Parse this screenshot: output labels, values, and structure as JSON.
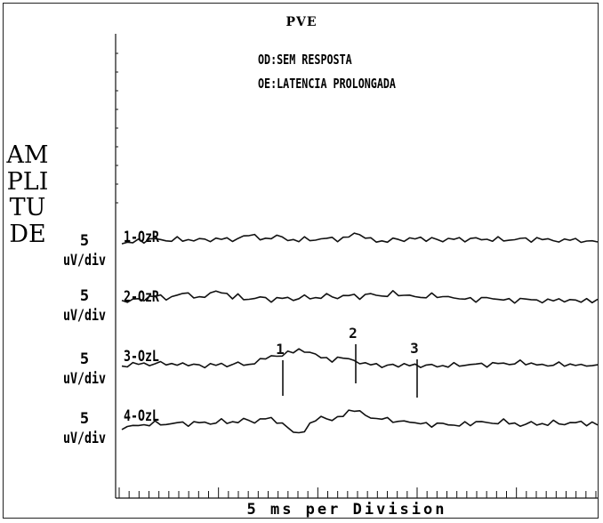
{
  "chart_data": {
    "type": "line",
    "title": "PVE",
    "annotations": [
      "OD:SEM RESPOSTA",
      "OE:LATENCIA PROLONGADA"
    ],
    "ylabel": "AMPLITUDE",
    "xlabel": "5 ms per Division",
    "grid": false,
    "series": [
      {
        "name": "1-OzR",
        "scale": "5",
        "scale_unit": "uV/div",
        "trace": [
          2.1,
          2.3,
          2.6,
          2.8,
          2.6,
          2.9,
          3.4,
          3.0,
          2.6,
          2.9,
          3.3,
          3.0,
          2.7,
          2.9,
          3.2,
          3.0,
          2.8,
          3.0,
          3.4,
          3.1,
          2.8,
          3.2,
          3.7,
          4.1,
          3.8,
          3.3,
          3.0,
          3.4,
          3.9,
          3.5,
          3.0,
          2.7,
          2.9,
          3.3,
          3.0,
          2.8,
          3.1,
          3.5,
          3.2,
          2.9,
          3.2,
          3.8,
          4.3,
          4.0,
          3.5,
          3.1,
          2.8,
          2.4,
          2.7,
          3.2,
          3.0,
          2.8,
          3.1,
          3.5,
          3.2,
          2.9,
          3.3,
          3.0,
          2.7,
          3.0,
          3.4,
          3.1,
          2.8,
          3.1,
          3.4,
          3.1,
          2.8,
          3.0,
          3.3,
          3.0,
          2.7,
          3.0,
          3.4,
          3.1,
          2.8,
          3.1,
          3.3,
          3.0,
          2.8,
          2.6,
          2.9,
          3.2,
          2.9,
          2.7,
          2.5,
          2.8,
          2.6
        ]
      },
      {
        "name": "2-OzR",
        "scale": "5",
        "scale_unit": "uV/div",
        "trace": [
          2.4,
          2.6,
          2.9,
          3.1,
          2.8,
          3.4,
          3.9,
          3.6,
          3.1,
          3.4,
          3.9,
          4.4,
          4.1,
          3.6,
          3.2,
          3.7,
          4.2,
          4.8,
          4.5,
          4.0,
          3.4,
          3.8,
          3.2,
          2.8,
          3.2,
          3.6,
          3.1,
          2.7,
          3.0,
          3.5,
          3.2,
          2.8,
          3.2,
          3.7,
          3.4,
          3.0,
          3.5,
          4.0,
          3.6,
          3.2,
          3.6,
          4.1,
          3.7,
          3.3,
          3.8,
          4.3,
          3.9,
          3.5,
          3.9,
          4.5,
          4.1,
          3.6,
          4.0,
          3.6,
          3.2,
          3.6,
          4.0,
          3.7,
          3.3,
          3.7,
          3.3,
          2.9,
          3.3,
          3.0,
          2.7,
          3.1,
          3.5,
          3.1,
          2.8,
          3.1,
          2.8,
          2.5,
          2.9,
          3.2,
          2.9,
          2.7,
          2.5,
          2.7,
          3.0,
          2.8,
          2.6,
          2.9,
          2.7,
          2.6,
          2.8,
          2.6,
          2.7
        ]
      },
      {
        "name": "3-OzL",
        "scale": "5",
        "scale_unit": "uV/div",
        "peaks": [
          "1",
          "2",
          "3"
        ],
        "trace": [
          2.4,
          2.7,
          3.0,
          3.3,
          3.0,
          2.8,
          3.1,
          3.4,
          3.1,
          2.8,
          3.1,
          3.0,
          2.8,
          3.0,
          2.7,
          2.5,
          2.8,
          3.1,
          2.9,
          2.6,
          2.9,
          3.3,
          3.0,
          2.6,
          3.4,
          3.9,
          4.3,
          4.8,
          4.6,
          5.0,
          5.5,
          5.8,
          6.0,
          5.8,
          5.5,
          5.1,
          4.6,
          4.1,
          3.8,
          4.2,
          4.5,
          4.1,
          3.7,
          3.3,
          3.0,
          3.2,
          2.8,
          2.5,
          2.7,
          2.9,
          2.6,
          2.8,
          3.0,
          2.7,
          2.5,
          2.7,
          2.9,
          2.6,
          2.4,
          2.7,
          3.0,
          2.8,
          2.6,
          2.9,
          3.2,
          2.9,
          2.7,
          3.0,
          3.4,
          3.1,
          2.9,
          3.2,
          3.6,
          3.2,
          2.9,
          3.1,
          2.8,
          2.6,
          2.9,
          3.2,
          2.9,
          2.7,
          3.0,
          2.8,
          2.6,
          2.8,
          2.6
        ]
      },
      {
        "name": "4-OzL",
        "scale": "5",
        "scale_unit": "uV/div",
        "trace": [
          2.0,
          2.3,
          2.6,
          2.8,
          2.5,
          2.9,
          3.3,
          3.0,
          2.7,
          3.0,
          3.4,
          3.1,
          2.8,
          3.1,
          3.5,
          3.2,
          2.9,
          3.3,
          3.8,
          3.4,
          3.1,
          3.5,
          4.0,
          3.7,
          3.3,
          3.8,
          4.4,
          4.0,
          3.4,
          3.0,
          2.2,
          1.3,
          0.8,
          1.6,
          2.8,
          3.9,
          4.4,
          4.1,
          3.8,
          4.3,
          4.9,
          5.6,
          6.0,
          5.6,
          4.9,
          4.3,
          3.9,
          4.3,
          4.0,
          3.6,
          3.3,
          3.7,
          3.4,
          3.0,
          3.3,
          2.9,
          2.6,
          2.9,
          3.2,
          2.8,
          2.5,
          2.8,
          3.1,
          2.9,
          3.2,
          3.6,
          3.3,
          2.9,
          3.3,
          3.7,
          3.3,
          2.9,
          2.6,
          2.9,
          3.3,
          3.0,
          2.7,
          3.0,
          3.5,
          3.1,
          2.8,
          3.1,
          3.5,
          3.2,
          2.9,
          3.1,
          2.9
        ]
      }
    ],
    "x_ticks_count": 49
  }
}
